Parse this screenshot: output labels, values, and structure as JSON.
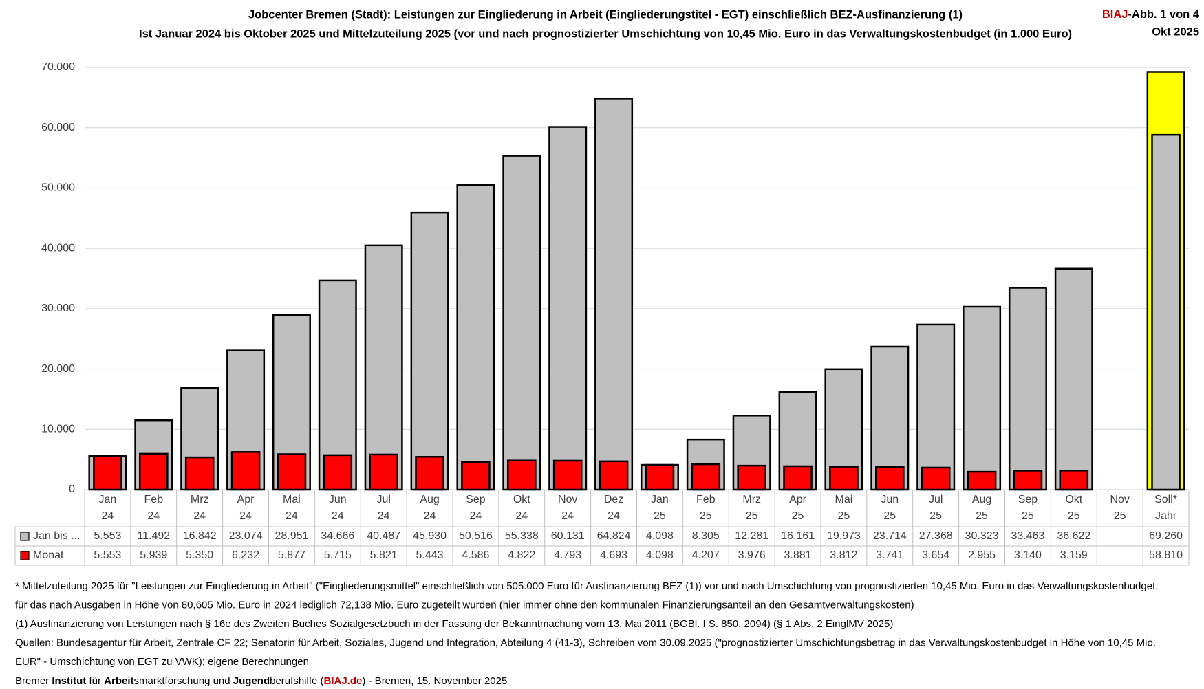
{
  "chart_data": {
    "type": "bar",
    "title": "Jobcenter Bremen (Stadt): Leistungen zur Eingliederung in Arbeit (Eingliederungstitel - EGT)  einschließlich BEZ-Ausfinanzierung (1)",
    "subtitle": "Ist Januar  2024 bis Oktober 2025 und Mittelzuteilung 2025 (vor und nach  prognostizierter Umschichtung von 10,45 Mio. Euro in das Verwaltungskostenbudget (in 1.000 Euro)",
    "source_label": [
      "BIAJ",
      "-Abb. 1 von 4"
    ],
    "date": "Okt 2025",
    "categories": [
      [
        "Jan",
        "24"
      ],
      [
        "Feb",
        "24"
      ],
      [
        "Mrz",
        "24"
      ],
      [
        "Apr",
        "24"
      ],
      [
        "Mai",
        "24"
      ],
      [
        "Jun",
        "24"
      ],
      [
        "Jul",
        "24"
      ],
      [
        "Aug",
        "24"
      ],
      [
        "Sep",
        "24"
      ],
      [
        "Okt",
        "24"
      ],
      [
        "Nov",
        "24"
      ],
      [
        "Dez",
        "24"
      ],
      [
        "Jan",
        "25"
      ],
      [
        "Feb",
        "25"
      ],
      [
        "Mrz",
        "25"
      ],
      [
        "Apr",
        "25"
      ],
      [
        "Mai",
        "25"
      ],
      [
        "Jun",
        "25"
      ],
      [
        "Jul",
        "25"
      ],
      [
        "Aug",
        "25"
      ],
      [
        "Sep",
        "25"
      ],
      [
        "Okt",
        "25"
      ],
      [
        "Nov",
        "25"
      ],
      [
        "Soll*",
        "Jahr"
      ]
    ],
    "series": [
      {
        "name": "Jan bis ...",
        "color": "#bfbfbf",
        "colors": [
          "#bfbfbf",
          "#bfbfbf",
          "#bfbfbf",
          "#bfbfbf",
          "#bfbfbf",
          "#bfbfbf",
          "#bfbfbf",
          "#bfbfbf",
          "#bfbfbf",
          "#bfbfbf",
          "#bfbfbf",
          "#bfbfbf",
          "#bfbfbf",
          "#bfbfbf",
          "#bfbfbf",
          "#bfbfbf",
          "#bfbfbf",
          "#bfbfbf",
          "#bfbfbf",
          "#bfbfbf",
          "#bfbfbf",
          "#bfbfbf",
          "#bfbfbf",
          "#ffff00"
        ],
        "values": [
          5553,
          11492,
          16842,
          23074,
          28951,
          34666,
          40487,
          45930,
          50516,
          55338,
          60131,
          64824,
          4098,
          8305,
          12281,
          16161,
          19973,
          23714,
          27368,
          30323,
          33463,
          36622,
          null,
          69260
        ],
        "value_labels": [
          "5.553",
          "11.492",
          "16.842",
          "23.074",
          "28.951",
          "34.666",
          "40.487",
          "45.930",
          "50.516",
          "55.338",
          "60.131",
          "64.824",
          "4.098",
          "8.305",
          "12.281",
          "16.161",
          "19.973",
          "23.714",
          "27.368",
          "30.323",
          "33.463",
          "36.622",
          null,
          "69.260"
        ]
      },
      {
        "name": "Monat",
        "color": "#ff0000",
        "colors": [
          "#ff0000",
          "#ff0000",
          "#ff0000",
          "#ff0000",
          "#ff0000",
          "#ff0000",
          "#ff0000",
          "#ff0000",
          "#ff0000",
          "#ff0000",
          "#ff0000",
          "#ff0000",
          "#ff0000",
          "#ff0000",
          "#ff0000",
          "#ff0000",
          "#ff0000",
          "#ff0000",
          "#ff0000",
          "#ff0000",
          "#ff0000",
          "#ff0000",
          "#ff0000",
          "#bfbfbf"
        ],
        "values": [
          5553,
          5939,
          5350,
          6232,
          5877,
          5715,
          5821,
          5443,
          4586,
          4822,
          4793,
          4693,
          4098,
          4207,
          3976,
          3881,
          3812,
          3741,
          3654,
          2955,
          3140,
          3159,
          null,
          58810
        ],
        "value_labels": [
          "5.553",
          "5.939",
          "5.350",
          "6.232",
          "5.877",
          "5.715",
          "5.821",
          "5.443",
          "4.586",
          "4.822",
          "4.793",
          "4.693",
          "4.098",
          "4.207",
          "3.976",
          "3.881",
          "3.812",
          "3.741",
          "3.654",
          "2.955",
          "3.140",
          "3.159",
          null,
          "58.810"
        ]
      }
    ],
    "ylim": [
      0,
      70000
    ],
    "yticks": [
      0,
      {
        "value": 10000,
        "label": "10.000"
      },
      {
        "value": 20000,
        "label": "20.000"
      },
      {
        "value": 30000,
        "label": "30.000"
      },
      {
        "value": 40000,
        "label": "40.000"
      },
      {
        "value": 50000,
        "label": "50.000"
      },
      {
        "value": 60000,
        "label": "60.000"
      },
      {
        "value": 70000,
        "label": "70.000"
      }
    ],
    "grid": true,
    "footnotes": [
      "* Mittelzuteilung 2025 für \"Leistungen zur Eingliederung in Arbeit\" (\"Eingliederungsmittel\" einschließlich von 505.000 Euro für Ausfinanzierung BEZ (1)) vor und nach Umschichtung von prognostizierten 10,45 Mio. Euro in das Verwaltungskostenbudget,",
      "für das nach Ausgaben in Höhe von 80,605 Mio. Euro in 2024 lediglich 72,138 Mio. Euro zugeteilt wurden (hier immer ohne den kommunalen Finanzierungsanteil an den Gesamtverwaltungskosten)",
      "(1) Ausfinanzierung von Leistungen nach § 16e des Zweiten Buches Sozialgesetzbuch in der Fassung der Bekanntmachung vom 13. Mai 2011 (BGBl. I S. 850, 2094) (§ 1 Abs. 2 EinglMV 2025)",
      "Quellen: Bundesagentur für Arbeit, Zentrale CF 22; Senatorin für Arbeit, Soziales, Jugend und Integration, Abteilung 4 (41-3),  Schreiben vom 30.09.2025 (\"prognostizierter Umschichtungsbetrag in das Verwaltungskostenbudget in Höhe von 10,45 Mio.",
      "EUR\" - Umschichtung von EGT zu VWK); eigene Berechnungen"
    ],
    "credit": [
      "Bremer ",
      "Institut",
      " für ",
      "Arbeit",
      "smarktforschung und ",
      "Jugend",
      "berufshilfe (",
      "BIAJ.de",
      ") - Bremen, 15. November 2025"
    ]
  }
}
